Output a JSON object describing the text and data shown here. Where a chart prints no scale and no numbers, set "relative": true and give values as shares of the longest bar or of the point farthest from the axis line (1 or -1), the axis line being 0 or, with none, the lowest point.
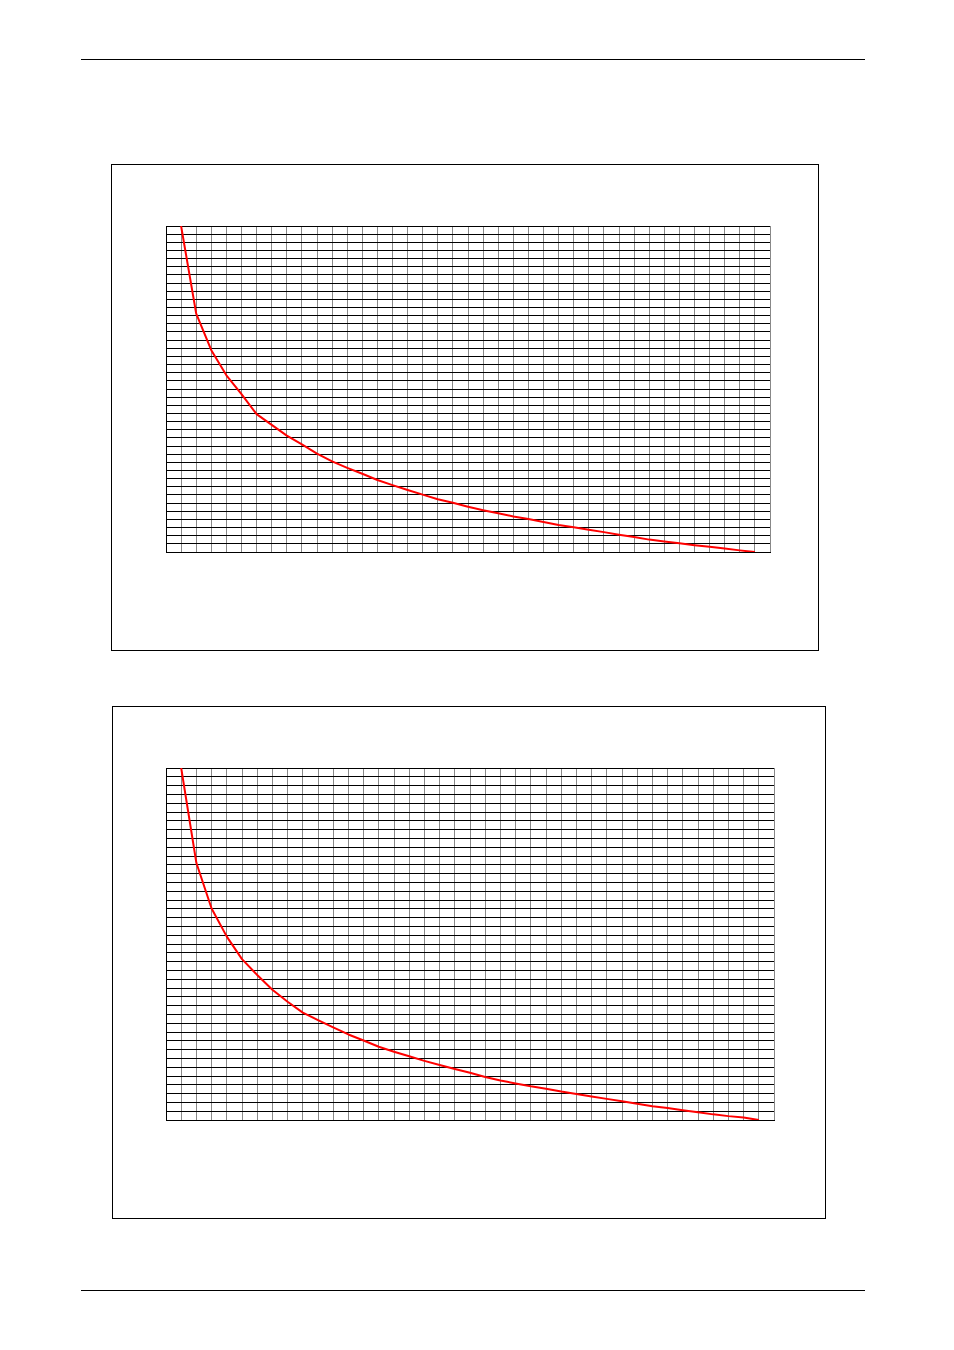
{
  "chart_data": [
    {
      "type": "line",
      "relative": true,
      "grid": true,
      "marker": "none",
      "categories": [
        null,
        null,
        null,
        null,
        null,
        null,
        null,
        null,
        null,
        null,
        null,
        null,
        null,
        null,
        null,
        null,
        null,
        null,
        null,
        null,
        null,
        null,
        null,
        null,
        null,
        null,
        null,
        null,
        null,
        null,
        null,
        null,
        null,
        null,
        null,
        null,
        null,
        null,
        null,
        null,
        null
      ],
      "series": [
        {
          "color": "#ff0000",
          "values": [
            null,
            1.0,
            0.731,
            0.619,
            0.542,
            0.484,
            0.423,
            0.39,
            0.357,
            0.33,
            0.302,
            0.278,
            0.258,
            0.24,
            0.221,
            0.205,
            0.19,
            0.176,
            0.162,
            0.151,
            0.139,
            0.128,
            0.119,
            0.109,
            0.101,
            0.092,
            0.083,
            0.076,
            0.068,
            0.061,
            0.053,
            0.046,
            0.038,
            0.032,
            0.027,
            0.021,
            0.016,
            0.011,
            0.005,
            0,
            null
          ]
        }
      ]
    },
    {
      "type": "line",
      "relative": true,
      "grid": true,
      "marker": "none",
      "categories": [
        null,
        null,
        null,
        null,
        null,
        null,
        null,
        null,
        null,
        null,
        null,
        null,
        null,
        null,
        null,
        null,
        null,
        null,
        null,
        null,
        null,
        null,
        null,
        null,
        null,
        null,
        null,
        null,
        null,
        null,
        null,
        null,
        null,
        null,
        null,
        null,
        null,
        null,
        null,
        null,
        null
      ],
      "series": [
        {
          "color": "#ff0000",
          "values": [
            null,
            1.0,
            0.73,
            0.601,
            0.521,
            0.457,
            0.412,
            0.37,
            0.336,
            0.305,
            0.284,
            0.263,
            0.243,
            0.226,
            0.208,
            0.194,
            0.181,
            0.168,
            0.156,
            0.145,
            0.134,
            0.122,
            0.112,
            0.104,
            0.096,
            0.089,
            0.081,
            0.074,
            0.067,
            0.06,
            0.053,
            0.046,
            0.039,
            0.034,
            0.028,
            0.022,
            0.016,
            0.011,
            0.007,
            0,
            null
          ]
        }
      ]
    }
  ]
}
